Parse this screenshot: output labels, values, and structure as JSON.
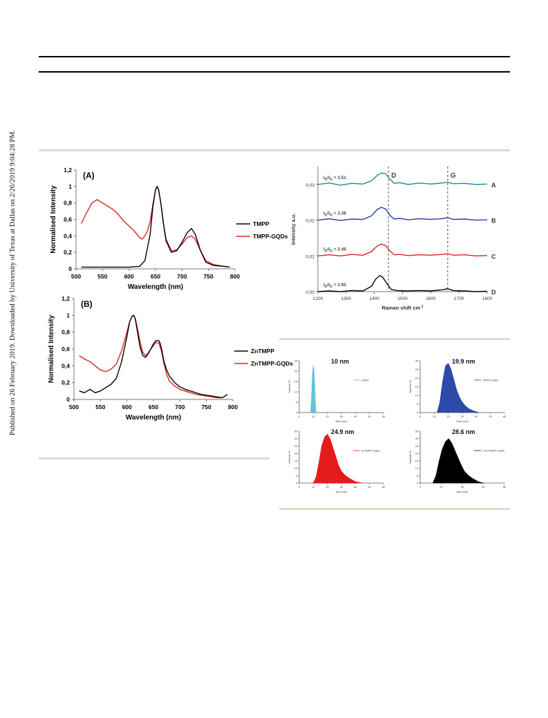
{
  "sidebar_note": "Published on 26 February 2019. Downloaded by University of Texas at Dallas on 2/26/2019 9:04:28 PM.",
  "chart_data": [
    {
      "type": "line",
      "panel_label": "(A)",
      "xlabel": "Wavelength (nm)",
      "ylabel": "Normalised Intensity",
      "xlim": [
        500,
        800
      ],
      "ylim": [
        0,
        1.2
      ],
      "x_ticks": [
        "500",
        "550",
        "600",
        "650",
        "700",
        "750",
        "800"
      ],
      "y_ticks": [
        "0",
        "0,2",
        "0,4",
        "0,6",
        "0,8",
        "1",
        "1,2"
      ],
      "legend_position": "right",
      "series": [
        {
          "name": "TMPP",
          "color": "#000000",
          "x": [
            510,
            550,
            600,
            620,
            630,
            640,
            645,
            650,
            653,
            656,
            660,
            665,
            670,
            680,
            690,
            700,
            710,
            718,
            725,
            735,
            745,
            760,
            780,
            790
          ],
          "y": [
            0.02,
            0.02,
            0.02,
            0.03,
            0.1,
            0.42,
            0.75,
            0.96,
            1.0,
            0.96,
            0.8,
            0.55,
            0.34,
            0.2,
            0.22,
            0.32,
            0.44,
            0.49,
            0.42,
            0.22,
            0.08,
            0.04,
            0.03,
            0.02
          ]
        },
        {
          "name": "TMPP-GQDs",
          "color": "#e02020",
          "x": [
            510,
            520,
            530,
            540,
            550,
            560,
            570,
            580,
            590,
            600,
            610,
            615,
            620,
            625,
            630,
            635,
            640,
            645,
            650,
            653,
            656,
            660,
            665,
            670,
            680,
            690,
            700,
            710,
            718,
            725,
            735,
            745,
            760,
            770,
            780,
            790
          ],
          "y": [
            0.55,
            0.68,
            0.8,
            0.84,
            0.8,
            0.76,
            0.72,
            0.66,
            0.58,
            0.52,
            0.46,
            0.42,
            0.38,
            0.36,
            0.4,
            0.46,
            0.58,
            0.78,
            0.96,
            1.0,
            0.95,
            0.8,
            0.55,
            0.36,
            0.22,
            0.23,
            0.3,
            0.38,
            0.4,
            0.36,
            0.22,
            0.1,
            0.05,
            0.04,
            0.03,
            0.02
          ]
        }
      ]
    },
    {
      "type": "line",
      "panel_label": "(B)",
      "xlabel": "Wavelength (nm)",
      "ylabel": "Normalised Intensity",
      "xlim": [
        500,
        800
      ],
      "ylim": [
        0,
        1.2
      ],
      "x_ticks": [
        "500",
        "550",
        "600",
        "650",
        "700",
        "750",
        "800"
      ],
      "y_ticks": [
        "0",
        "0,2",
        "0,4",
        "0,6",
        "0,8",
        "1",
        "1,2"
      ],
      "legend_position": "right",
      "series": [
        {
          "name": "ZnTMPP",
          "color": "#000000",
          "x": [
            510,
            520,
            530,
            540,
            550,
            560,
            570,
            580,
            590,
            600,
            605,
            610,
            613,
            616,
            620,
            625,
            630,
            635,
            640,
            645,
            650,
            655,
            660,
            663,
            666,
            670,
            675,
            680,
            690,
            700,
            710,
            720,
            730,
            740,
            750,
            760,
            770,
            780,
            790
          ],
          "y": [
            0.1,
            0.08,
            0.12,
            0.08,
            0.1,
            0.14,
            0.18,
            0.25,
            0.45,
            0.75,
            0.92,
            0.99,
            1.0,
            0.95,
            0.8,
            0.62,
            0.52,
            0.5,
            0.54,
            0.6,
            0.66,
            0.7,
            0.7,
            0.66,
            0.58,
            0.45,
            0.35,
            0.28,
            0.2,
            0.15,
            0.12,
            0.1,
            0.08,
            0.06,
            0.05,
            0.04,
            0.03,
            0.02,
            0.06
          ]
        },
        {
          "name": "ZnTMPP-GQDs",
          "color": "#e02020",
          "x": [
            510,
            520,
            530,
            540,
            550,
            560,
            570,
            580,
            590,
            600,
            605,
            610,
            613,
            616,
            620,
            625,
            630,
            635,
            640,
            645,
            650,
            655,
            660,
            663,
            666,
            670,
            675,
            680,
            690,
            700,
            710,
            720,
            730,
            740,
            750,
            760,
            770,
            780
          ],
          "y": [
            0.52,
            0.48,
            0.45,
            0.4,
            0.35,
            0.33,
            0.36,
            0.42,
            0.58,
            0.8,
            0.92,
            0.99,
            1.0,
            0.96,
            0.84,
            0.68,
            0.56,
            0.52,
            0.55,
            0.6,
            0.64,
            0.68,
            0.67,
            0.62,
            0.55,
            0.42,
            0.3,
            0.22,
            0.16,
            0.12,
            0.1,
            0.08,
            0.06,
            0.05,
            0.04,
            0.03,
            0.02,
            0.02
          ]
        }
      ]
    },
    {
      "type": "line",
      "xlabel": "Raman shift cm",
      "xlabel_sup": "-1",
      "ylabel": "Intensity a.u.",
      "xlim": [
        1200,
        1800
      ],
      "ylim": [
        0,
        0.035
      ],
      "x_ticks": [
        "1200",
        "1300",
        "1400",
        "1500",
        "1600",
        "1700",
        "1800"
      ],
      "y_ticks": [
        "0,00",
        "0,01",
        "0,02",
        "0,03"
      ],
      "band_lines": [
        {
          "x": 1450,
          "label": "D"
        },
        {
          "x": 1660,
          "label": "G"
        }
      ],
      "series": [
        {
          "name": "A",
          "ratio_prefix": "I",
          "ratio_sub1": "D",
          "ratio_mid": "/I",
          "ratio_sub2": "G",
          "ratio_value": " = 1.51",
          "color": "#1a8a8a",
          "offset": 0.03,
          "x": [
            1200,
            1240,
            1280,
            1320,
            1360,
            1390,
            1410,
            1425,
            1440,
            1455,
            1470,
            1490,
            1520,
            1560,
            1600,
            1640,
            1660,
            1680,
            1720,
            1760,
            1800
          ],
          "y": [
            0,
            0.0004,
            -0.0002,
            0.0003,
            0.0001,
            0.001,
            0.0025,
            0.0032,
            0.003,
            0.0015,
            0.0003,
            0.0005,
            0,
            0.0004,
            0.0001,
            0.0004,
            0.0006,
            0.0002,
            0.0003,
            0,
            0.0001
          ]
        },
        {
          "name": "B",
          "ratio_prefix": "I",
          "ratio_sub1": "D",
          "ratio_mid": "/I",
          "ratio_sub2": "G",
          "ratio_value": " = 3.38",
          "color": "#2a3fa6",
          "offset": 0.02,
          "x": [
            1200,
            1240,
            1280,
            1320,
            1360,
            1390,
            1410,
            1425,
            1440,
            1455,
            1470,
            1490,
            1520,
            1560,
            1600,
            1640,
            1660,
            1680,
            1720,
            1760,
            1800
          ],
          "y": [
            0,
            0.0004,
            -0.0001,
            0.0003,
            0.0002,
            0.0012,
            0.003,
            0.0036,
            0.0031,
            0.0014,
            0.0003,
            0.0005,
            0.0001,
            0.0004,
            0.0002,
            0.0004,
            0.0007,
            0.0002,
            0.0003,
            0,
            0.0001
          ]
        },
        {
          "name": "C",
          "ratio_prefix": "I",
          "ratio_sub1": "D",
          "ratio_mid": "/I",
          "ratio_sub2": "G",
          "ratio_value": " = 2.46",
          "color": "#e02020",
          "offset": 0.01,
          "x": [
            1200,
            1240,
            1280,
            1320,
            1360,
            1390,
            1410,
            1425,
            1440,
            1455,
            1470,
            1490,
            1520,
            1560,
            1600,
            1640,
            1660,
            1680,
            1720,
            1760,
            1800
          ],
          "y": [
            0,
            0.0003,
            0,
            0.0004,
            0.0002,
            0.0012,
            0.0028,
            0.0033,
            0.0029,
            0.0014,
            0.0003,
            0.0004,
            0.0001,
            0.0003,
            0.0002,
            0.0004,
            0.0006,
            0.0002,
            0.0003,
            0,
            0.0001
          ]
        },
        {
          "name": "D",
          "ratio_prefix": "I",
          "ratio_sub1": "D",
          "ratio_mid": "/I",
          "ratio_sub2": "G",
          "ratio_value": " = 1.92",
          "color": "#000000",
          "offset": 0.0,
          "x": [
            1200,
            1240,
            1280,
            1320,
            1360,
            1390,
            1405,
            1420,
            1430,
            1445,
            1460,
            1480,
            1520,
            1560,
            1600,
            1640,
            1660,
            1680,
            1720,
            1760,
            1800
          ],
          "y": [
            0,
            0.0002,
            0,
            0.0003,
            0.0002,
            0.0015,
            0.0035,
            0.0045,
            0.004,
            0.0022,
            0.0006,
            0.0003,
            0.0002,
            0.0003,
            0.0002,
            0.0005,
            0.0008,
            0.0003,
            0.0002,
            0,
            0.0001
          ]
        }
      ]
    },
    {
      "type": "area",
      "annotation": "10 nm",
      "legend": "GQDs",
      "color": "#5ec7d3",
      "xlabel": "Size (nm)",
      "ylabel": "Number %",
      "xlim": [
        0,
        60
      ],
      "ylim": [
        0,
        25
      ],
      "x_ticks": [
        "0",
        "10",
        "20",
        "30",
        "40",
        "50",
        "60"
      ],
      "y_ticks": [
        "0",
        "5",
        "10",
        "15",
        "20",
        "25"
      ],
      "x": [
        8,
        8.5,
        9,
        9.5,
        10,
        10.5,
        11,
        11.5,
        12
      ],
      "y": [
        0,
        4,
        13,
        20,
        22.5,
        21,
        14,
        5,
        0
      ]
    },
    {
      "type": "area",
      "annotation": "19.9 nm",
      "legend": "TMPP-GQDs",
      "color": "#2c4aa8",
      "xlabel": "Size (nm)",
      "ylabel": "Number %",
      "xlim": [
        0,
        60
      ],
      "ylim": [
        0,
        30
      ],
      "x_ticks": [
        "0",
        "10",
        "20",
        "30",
        "40",
        "50",
        "60"
      ],
      "y_ticks": [
        "0",
        "5",
        "10",
        "15",
        "20",
        "25",
        "30"
      ],
      "x": [
        12,
        14,
        16,
        18,
        20,
        22,
        24,
        26,
        28,
        30,
        32,
        35,
        38,
        42
      ],
      "y": [
        0,
        6,
        18,
        27,
        28.5,
        25,
        19,
        13,
        9,
        6,
        4,
        2,
        1,
        0
      ]
    },
    {
      "type": "area",
      "annotation": "24.9 nm",
      "legend": "ZnTMPP-GQDs",
      "color": "#e51b1b",
      "xlabel": "Size (nm)",
      "ylabel": "Number %",
      "xlim": [
        0,
        60
      ],
      "ylim": [
        0,
        35
      ],
      "x_ticks": [
        "0",
        "10",
        "20",
        "30",
        "40",
        "50",
        "60"
      ],
      "y_ticks": [
        "0",
        "5",
        "10",
        "15",
        "20",
        "25",
        "30",
        "35"
      ],
      "x": [
        10,
        12,
        14,
        16,
        18,
        20,
        22,
        24,
        26,
        28,
        30,
        33,
        36,
        40,
        45
      ],
      "y": [
        0,
        4,
        14,
        25,
        31,
        33,
        30,
        24,
        18,
        12,
        8,
        5,
        3,
        1,
        0
      ]
    },
    {
      "type": "area",
      "annotation": "28.6 nm",
      "legend": "CuCl*TMPP-GQDs",
      "color": "#000000",
      "xlabel": "Size (nm)",
      "ylabel": "Number %",
      "xlim": [
        0,
        80
      ],
      "ylim": [
        0,
        35
      ],
      "x_ticks": [
        "0",
        "20",
        "40",
        "60",
        "80"
      ],
      "y_ticks": [
        "0",
        "5",
        "10",
        "15",
        "20",
        "25",
        "30",
        "35"
      ],
      "x": [
        12,
        15,
        18,
        21,
        24,
        27,
        30,
        33,
        36,
        39,
        42,
        46,
        50,
        55,
        60
      ],
      "y": [
        0,
        5,
        15,
        23,
        28,
        30,
        27,
        22,
        17,
        12,
        8,
        5,
        3,
        1,
        0
      ]
    }
  ]
}
